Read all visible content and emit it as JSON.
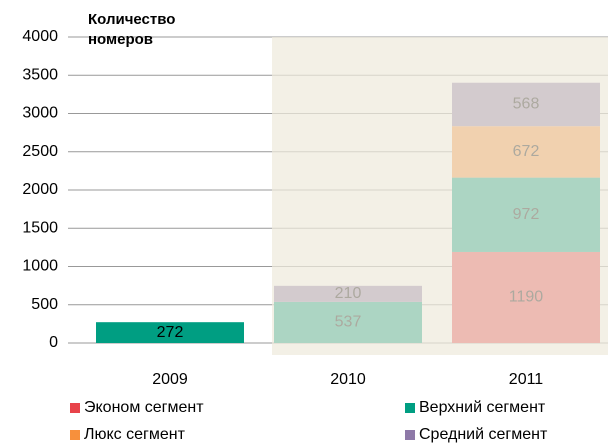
{
  "chart_data": {
    "type": "bar",
    "stacked": true,
    "y_label": "Количество номеров",
    "categories": [
      "2009",
      "2010",
      "2011"
    ],
    "series": [
      {
        "name": "Эконом сегмент",
        "color": "#e8434a",
        "values": [
          null,
          null,
          1190
        ]
      },
      {
        "name": "Верхний сегмент",
        "color": "#009e82",
        "values": [
          272,
          537,
          972
        ]
      },
      {
        "name": "Люкс сегмент",
        "color": "#f7903c",
        "values": [
          null,
          null,
          672
        ]
      },
      {
        "name": "Средний сегмент",
        "color": "#8e79a8",
        "values": [
          null,
          210,
          568
        ]
      }
    ],
    "ylim": [
      0,
      4000
    ],
    "yticks": [
      0,
      500,
      1000,
      1500,
      2000,
      2500,
      3000,
      3500,
      4000
    ],
    "grid": true
  }
}
